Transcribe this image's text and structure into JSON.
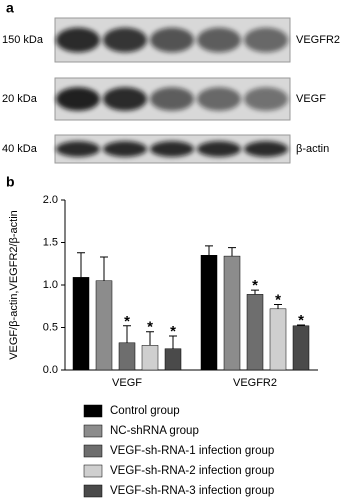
{
  "figure": {
    "panel_a": "a",
    "panel_b": "b"
  },
  "blot": {
    "rows": [
      {
        "size": "150 kDa",
        "protein": "VEGFR2"
      },
      {
        "size": "20 kDa",
        "protein": "VEGF"
      },
      {
        "size": "40 kDa",
        "protein": "β-actin"
      }
    ]
  },
  "chart_data": {
    "type": "bar",
    "y_label": "VEGF/β-actin,VEGFR2/β-actin",
    "categories": [
      "VEGF",
      "VEGFR2"
    ],
    "ylim": [
      0,
      2
    ],
    "yticks": [
      {
        "value": 0,
        "label": "0.0"
      },
      {
        "value": 0.5,
        "label": "0.5"
      },
      {
        "value": 1,
        "label": "1.0"
      },
      {
        "value": 1.5,
        "label": "1.5"
      },
      {
        "value": 2,
        "label": "2.0"
      }
    ],
    "series": [
      {
        "name": "Control group",
        "color": "#000000",
        "values": [
          1.09,
          1.35
        ],
        "errors": [
          0.29,
          0.11
        ]
      },
      {
        "name": "NC-shRNA group",
        "color": "#8c8c8c",
        "values": [
          1.05,
          1.34
        ],
        "errors": [
          0.28,
          0.1
        ]
      },
      {
        "name": "VEGF-sh-RNA-1 infection group",
        "color": "#6e6e6e",
        "values": [
          0.32,
          0.89
        ],
        "errors": [
          0.2,
          0.05
        ],
        "annotations": [
          "*",
          "*"
        ]
      },
      {
        "name": "VEGF-sh-RNA-2 infection group",
        "color": "#cfcfcf",
        "values": [
          0.29,
          0.72
        ],
        "errors": [
          0.16,
          0.05
        ],
        "annotations": [
          "*",
          "*"
        ]
      },
      {
        "name": "VEGF-sh-RNA-3 infection group",
        "color": "#4a4a4a",
        "values": [
          0.25,
          0.52
        ],
        "errors": [
          0.15,
          0.01
        ],
        "annotations": [
          "*",
          "*"
        ]
      }
    ]
  }
}
